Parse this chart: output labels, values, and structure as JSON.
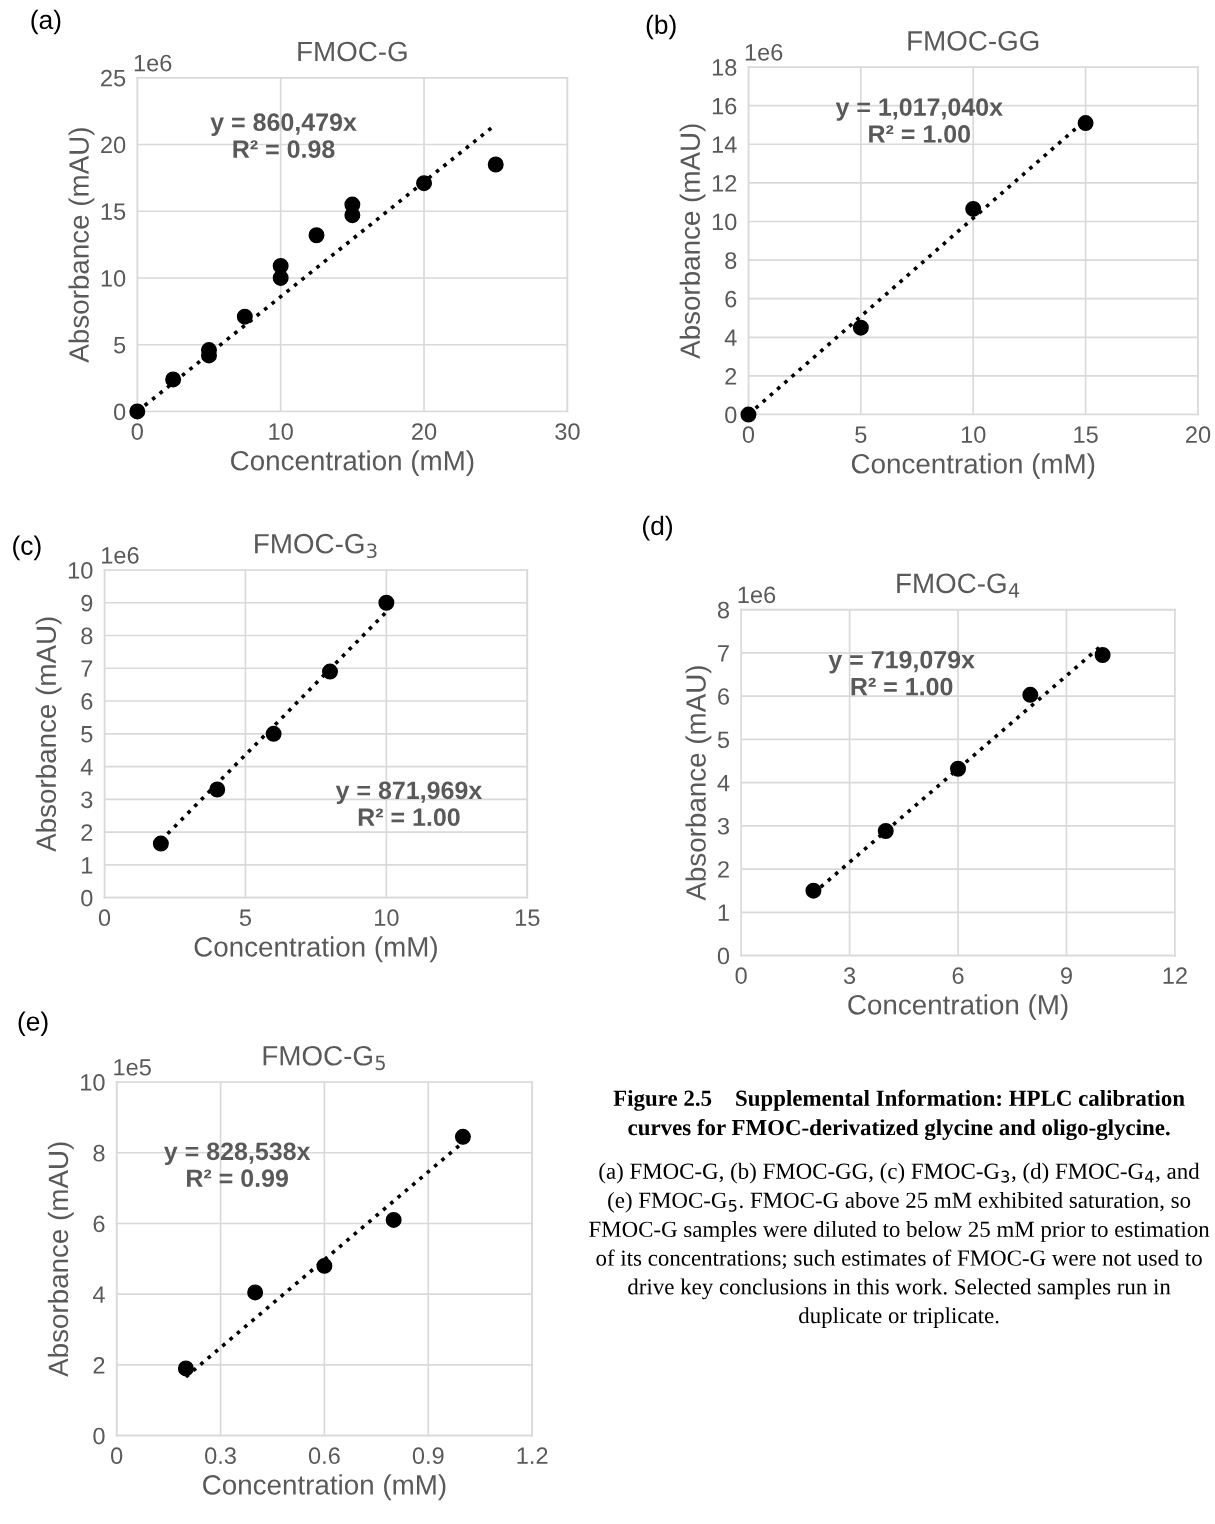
{
  "chart_data": [
    {
      "type": "scatter",
      "title": "FMOC-G",
      "xlabel": "Concentration (mM)",
      "ylabel": "Absorbance (mAU)",
      "xlim": [
        0,
        30
      ],
      "xticks": [
        0,
        10,
        20,
        30
      ],
      "ylim": [
        0,
        25
      ],
      "yticks": [
        0,
        5,
        10,
        15,
        20,
        25
      ],
      "grid": true,
      "series": [
        {
          "type": "scatter",
          "color": "#000000",
          "marker": "circle",
          "x": [
            0,
            2.5,
            5,
            5,
            7.5,
            10,
            10,
            12.5,
            15,
            15,
            20,
            25
          ],
          "values": [
            0,
            2.4,
            4.2,
            4.6,
            7.1,
            10.0,
            10.9,
            13.2,
            14.7,
            15.5,
            17.1,
            18.5
          ]
        },
        {
          "type": "line",
          "color": "#000000",
          "line_style": "dotted",
          "x": [
            0,
            25
          ],
          "values": [
            0,
            21.5
          ]
        }
      ],
      "annotations": [
        "(a)",
        "1e6",
        "y = 860,479x\nR² = 0.98"
      ]
    },
    {
      "type": "scatter",
      "title": "FMOC-GG",
      "xlabel": "Concentration (mM)",
      "ylabel": "Absorbance (mAU)",
      "xlim": [
        0,
        20
      ],
      "xticks": [
        0,
        5,
        10,
        15,
        20
      ],
      "ylim": [
        0,
        18
      ],
      "yticks": [
        0,
        2,
        4,
        6,
        8,
        10,
        12,
        14,
        16,
        18
      ],
      "grid": true,
      "series": [
        {
          "type": "scatter",
          "color": "#000000",
          "marker": "circle",
          "x": [
            0,
            5,
            10,
            15
          ],
          "values": [
            0,
            4.5,
            10.65,
            15.1
          ]
        },
        {
          "type": "line",
          "color": "#000000",
          "line_style": "dotted",
          "x": [
            0,
            15
          ],
          "values": [
            0,
            15.26
          ]
        }
      ],
      "annotations": [
        "(b)",
        "1e6",
        "y = 1,017,040x\nR² = 1.00"
      ]
    },
    {
      "type": "scatter",
      "title": "FMOC-G$_{3}$",
      "xlabel": "Concentration (mM)",
      "ylabel": "Absorbance (mAU)",
      "xlim": [
        0,
        15
      ],
      "xticks": [
        0,
        5,
        10,
        15
      ],
      "ylim": [
        0,
        10
      ],
      "yticks": [
        0,
        1,
        2,
        3,
        4,
        5,
        6,
        7,
        8,
        9,
        10
      ],
      "grid": true,
      "series": [
        {
          "type": "scatter",
          "color": "#000000",
          "marker": "circle",
          "x": [
            2,
            4,
            6,
            8,
            10
          ],
          "values": [
            1.65,
            3.3,
            5.0,
            6.9,
            9.0
          ]
        },
        {
          "type": "line",
          "color": "#000000",
          "line_style": "dotted",
          "x": [
            2,
            10
          ],
          "values": [
            1.74,
            8.72
          ]
        }
      ],
      "annotations": [
        "(c)",
        "1e6",
        "y = 871,969x\nR² = 1.00"
      ]
    },
    {
      "type": "scatter",
      "title": "FMOC-G$_{4}$",
      "xlabel": "Concentration (M)",
      "ylabel": "Absorbance (mAU)",
      "xlim": [
        0,
        12
      ],
      "xticks": [
        0,
        3,
        6,
        9,
        12
      ],
      "ylim": [
        0,
        8
      ],
      "yticks": [
        0,
        1,
        2,
        3,
        4,
        5,
        6,
        7,
        8
      ],
      "grid": true,
      "series": [
        {
          "type": "scatter",
          "color": "#000000",
          "marker": "circle",
          "x": [
            2,
            4,
            6,
            8,
            10
          ],
          "values": [
            1.5,
            2.88,
            4.32,
            6.03,
            6.95
          ]
        },
        {
          "type": "line",
          "color": "#000000",
          "line_style": "dotted",
          "x": [
            2,
            10
          ],
          "values": [
            1.44,
            7.19
          ]
        }
      ],
      "annotations": [
        "(d)",
        "1e6",
        "y = 719,079x\nR² = 1.00"
      ]
    },
    {
      "type": "scatter",
      "title": "FMOC-G$_{5}$",
      "xlabel": "Concentration (mM)",
      "ylabel": "Absorbance (mAU)",
      "xlim": [
        0,
        1.2
      ],
      "xticks": [
        0,
        0.3,
        0.6,
        0.9,
        1.2
      ],
      "ylim": [
        0,
        10
      ],
      "yticks": [
        0,
        2,
        4,
        6,
        8,
        10
      ],
      "grid": true,
      "series": [
        {
          "type": "scatter",
          "color": "#000000",
          "marker": "circle",
          "x": [
            0.2,
            0.4,
            0.6,
            0.8,
            1.0
          ],
          "values": [
            1.9,
            4.05,
            4.8,
            6.1,
            8.45
          ]
        },
        {
          "type": "line",
          "color": "#000000",
          "line_style": "dotted",
          "x": [
            0.2,
            1.0
          ],
          "values": [
            1.66,
            8.29
          ]
        }
      ],
      "annotations": [
        "(e)",
        "1e5",
        "y = 828,538x\nR² = 0.99"
      ]
    },
    {
      "type": "other",
      "title": "Figure 2.5    Supplemental Information: HPLC calibration curves for FMOC-derivatized glycine and oligo-glycine.",
      "annotations": [
        "(a) FMOC-G, (b) FMOC-GG, (c) FMOC-G$_{3}$, (d) FMOC-G$_{4}$, and (e) FMOC-G$_{5}$. FMOC-G above 25 mM exhibited saturation, so FMOC-G samples were diluted to below 25 mM prior to estimation of its concentrations; such estimates of FMOC-G were not used to drive key conclusions in this work. Selected samples run in duplicate or triplicate."
      ]
    }
  ]
}
